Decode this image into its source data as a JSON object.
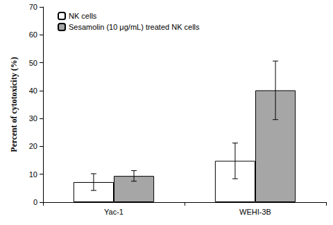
{
  "chart_data": {
    "type": "bar",
    "categories": [
      "Yac-1",
      "WEHI-3B"
    ],
    "series": [
      {
        "name": "NK cells",
        "color": "#ffffff",
        "values": [
          7.2,
          14.8
        ],
        "errors": [
          3.0,
          6.4
        ]
      },
      {
        "name": "Sesamolin (10 μg/mL) treated NK cells",
        "color": "#a6a6a6",
        "values": [
          9.4,
          40.1
        ],
        "errors": [
          1.9,
          10.5
        ]
      }
    ],
    "y_label": "Percent of cytotoxicity (%)",
    "ylim": [
      0,
      70
    ],
    "yticks": [
      0,
      10,
      20,
      30,
      40,
      50,
      60,
      70
    ],
    "grid": false,
    "legend": "upper left"
  }
}
